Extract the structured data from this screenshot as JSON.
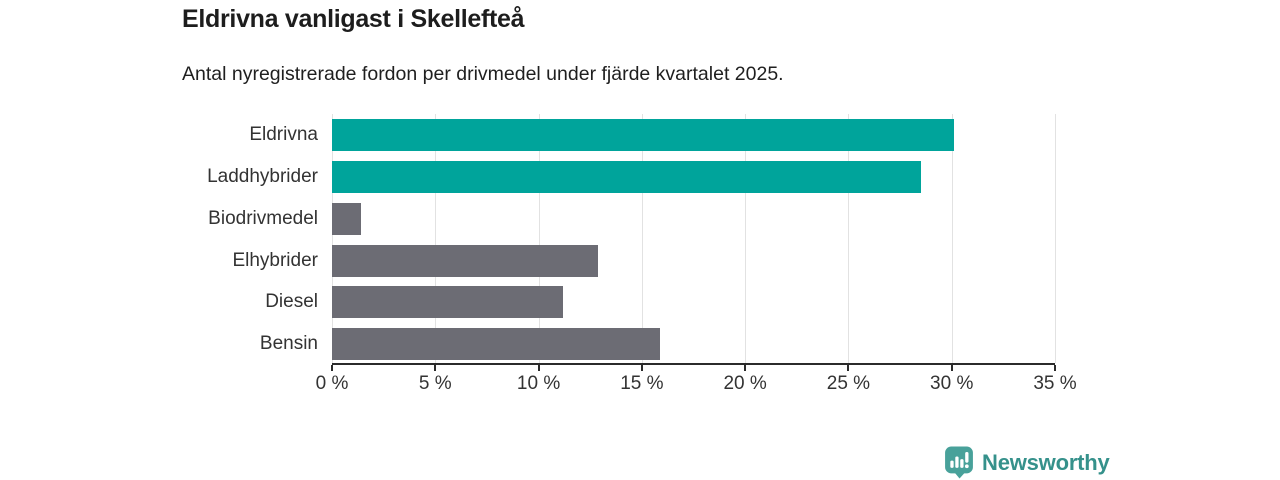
{
  "header": {
    "title": "Eldrivna vanligast i Skellefteå",
    "subtitle": "Antal nyregistrerade fordon per drivmedel under fjärde kvartalet 2025."
  },
  "chart_data": {
    "type": "bar",
    "orientation": "horizontal",
    "title": "Eldrivna vanligast i Skellefteå",
    "subtitle": "Antal nyregistrerade fordon per drivmedel under fjärde kvartalet 2025.",
    "categories": [
      "Eldrivna",
      "Laddhybrider",
      "Biodrivmedel",
      "Elhybrider",
      "Diesel",
      "Bensin"
    ],
    "values": [
      30.1,
      28.5,
      1.4,
      12.9,
      11.2,
      15.9
    ],
    "unit": "%",
    "bar_colors": [
      "#00A49B",
      "#00A49B",
      "#6C6C74",
      "#6C6C74",
      "#6C6C74",
      "#6C6C74"
    ],
    "xlabel": "",
    "ylabel": "",
    "xlim": [
      0,
      35
    ],
    "xticks": [
      0,
      5,
      10,
      15,
      20,
      25,
      30,
      35
    ],
    "xtick_labels": [
      "0 %",
      "5 %",
      "10 %",
      "15 %",
      "20 %",
      "25 %",
      "30 %",
      "35 %"
    ],
    "grid": true,
    "legend": false
  },
  "branding": {
    "name": "Newsworthy",
    "logo_icon": "bar-chart-speech-bubble-icon",
    "text_color": "#35918B",
    "icon_color": "#48A19A"
  },
  "colors": {
    "accent": "#00A49B",
    "muted_bar": "#6C6C74",
    "gridline": "#E2E2E2",
    "axis_line": "#2B2B2B",
    "title_text": "#1D1D1D",
    "tick_text": "#333333",
    "background": "#FFFFFF"
  }
}
